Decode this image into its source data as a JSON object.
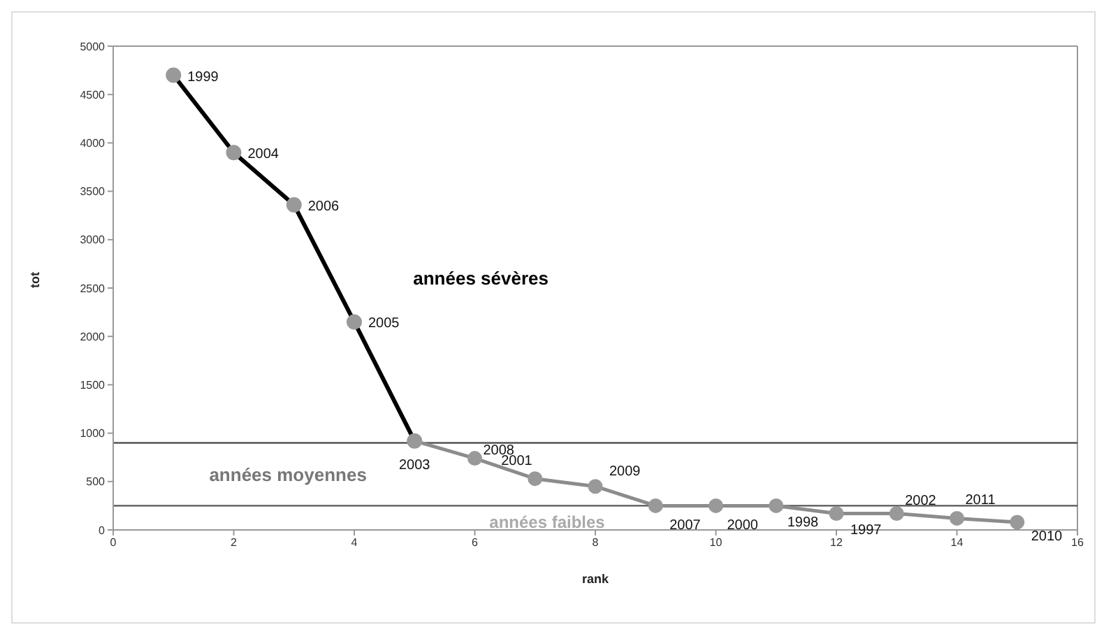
{
  "chart_data": {
    "type": "line",
    "xlabel": "rank",
    "ylabel": "tot",
    "series": [
      {
        "color": "#000000",
        "x": [
          1,
          2,
          3,
          4,
          5
        ],
        "values": [
          4700,
          3900,
          3360,
          2150,
          920
        ]
      },
      {
        "color": "#8c8c8c",
        "x": [
          5,
          6,
          7,
          8,
          9,
          10,
          11,
          12,
          13,
          14,
          15
        ],
        "values": [
          920,
          740,
          530,
          450,
          250,
          250,
          250,
          170,
          170,
          120,
          80
        ]
      }
    ],
    "xlim": [
      0,
      16
    ],
    "xticks": [
      0,
      2,
      4,
      6,
      8,
      10,
      12,
      14,
      16
    ],
    "ylim": [
      0,
      5000
    ],
    "yticks": [
      0,
      500,
      1000,
      1500,
      2000,
      2500,
      3000,
      3500,
      4000,
      4500,
      5000
    ],
    "grid": false,
    "marker": "circle",
    "line_style": "solid",
    "ref_lines": [
      {
        "axis": "y",
        "value": 900,
        "color": "#555555"
      },
      {
        "axis": "y",
        "value": 250,
        "color": "#555555"
      }
    ],
    "annotations": [
      "années sévères",
      "années moyennes",
      "années faibles",
      {
        "text": "1999",
        "x": 1,
        "y": 4700
      },
      {
        "text": "2004",
        "x": 2,
        "y": 3900
      },
      {
        "text": "2006",
        "x": 3,
        "y": 3360
      },
      {
        "text": "2005",
        "x": 4,
        "y": 2150
      },
      {
        "text": "2003",
        "x": 5,
        "y": 920
      },
      {
        "text": "2008",
        "x": 6,
        "y": 740
      },
      {
        "text": "2001",
        "x": 7,
        "y": 530
      },
      {
        "text": "2009",
        "x": 8,
        "y": 450
      },
      {
        "text": "2007",
        "x": 9,
        "y": 250
      },
      {
        "text": "2000",
        "x": 10,
        "y": 250
      },
      {
        "text": "1998",
        "x": 11,
        "y": 250
      },
      {
        "text": "1997",
        "x": 12,
        "y": 170
      },
      {
        "text": "2002",
        "x": 13,
        "y": 170
      },
      {
        "text": "2011",
        "x": 14,
        "y": 120
      },
      {
        "text": "2010",
        "x": 15,
        "y": 80
      }
    ]
  }
}
